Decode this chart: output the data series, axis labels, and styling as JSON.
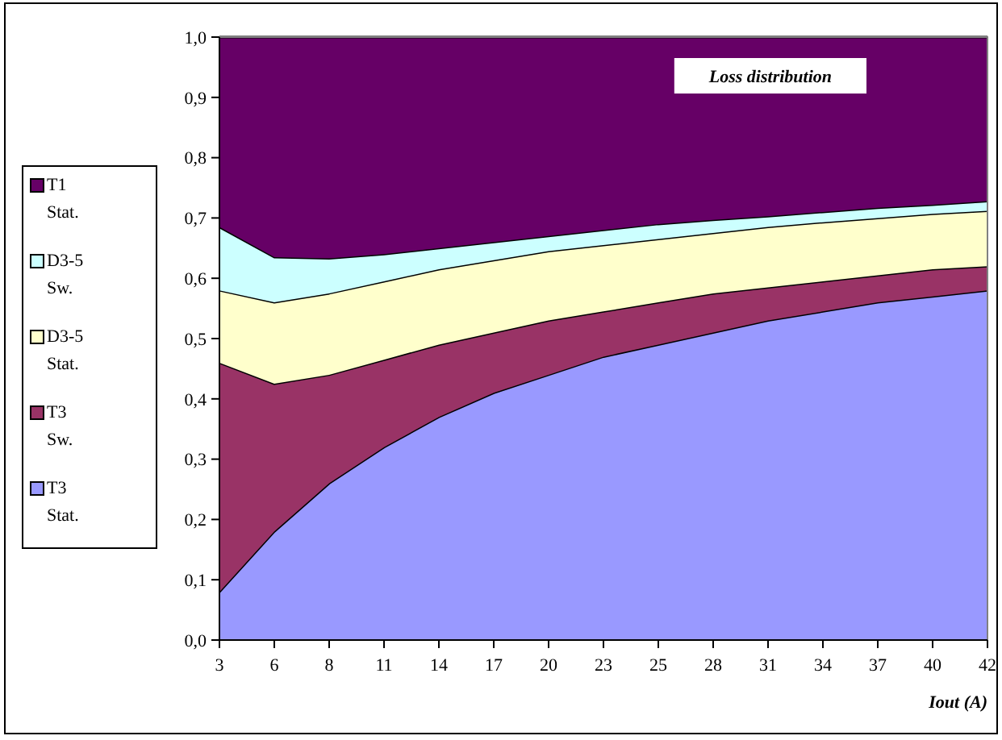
{
  "chart_data": {
    "type": "area",
    "stacked": true,
    "xlabel": "Iout (A)",
    "annotations": [
      "Loss distribution"
    ],
    "categories": [
      "3",
      "6",
      "8",
      "11",
      "14",
      "17",
      "20",
      "23",
      "25",
      "28",
      "31",
      "34",
      "37",
      "40",
      "42"
    ],
    "ylim": [
      0,
      1
    ],
    "yticks": [
      {
        "value": 0,
        "label": "0,0"
      },
      {
        "value": 0.1,
        "label": "0,1"
      },
      {
        "value": 0.2,
        "label": "0,2"
      },
      {
        "value": 0.3,
        "label": "0,3"
      },
      {
        "value": 0.4,
        "label": "0,4"
      },
      {
        "value": 0.5,
        "label": "0,5"
      },
      {
        "value": 0.6,
        "label": "0,6"
      },
      {
        "value": 0.7,
        "label": "0,7"
      },
      {
        "value": 0.8,
        "label": "0,8"
      },
      {
        "value": 0.9,
        "label": "0,9"
      },
      {
        "value": 1,
        "label": "1,0"
      }
    ],
    "legend": "left",
    "series": [
      {
        "name": "T3 Stat.",
        "color": "#9999ff",
        "values": [
          0.08,
          0.18,
          0.26,
          0.32,
          0.37,
          0.41,
          0.44,
          0.47,
          0.49,
          0.51,
          0.53,
          0.545,
          0.56,
          0.57,
          0.58
        ]
      },
      {
        "name": "T3 Sw.",
        "color": "#993366",
        "values": [
          0.38,
          0.245,
          0.18,
          0.145,
          0.12,
          0.1,
          0.09,
          0.075,
          0.07,
          0.065,
          0.055,
          0.05,
          0.045,
          0.045,
          0.04
        ]
      },
      {
        "name": "D3-5 Stat.",
        "color": "#ffffcc",
        "values": [
          0.12,
          0.135,
          0.135,
          0.13,
          0.125,
          0.12,
          0.115,
          0.11,
          0.105,
          0.1,
          0.1,
          0.098,
          0.095,
          0.092,
          0.092
        ]
      },
      {
        "name": "D3-5 Sw.",
        "color": "#ccffff",
        "values": [
          0.105,
          0.075,
          0.058,
          0.045,
          0.035,
          0.03,
          0.025,
          0.025,
          0.025,
          0.022,
          0.018,
          0.017,
          0.017,
          0.015,
          0.016
        ]
      },
      {
        "name": "T1 Stat.",
        "color": "#660066",
        "values": [
          0.315,
          0.365,
          0.367,
          0.36,
          0.35,
          0.34,
          0.33,
          0.32,
          0.31,
          0.303,
          0.297,
          0.29,
          0.283,
          0.278,
          0.272
        ]
      }
    ]
  }
}
